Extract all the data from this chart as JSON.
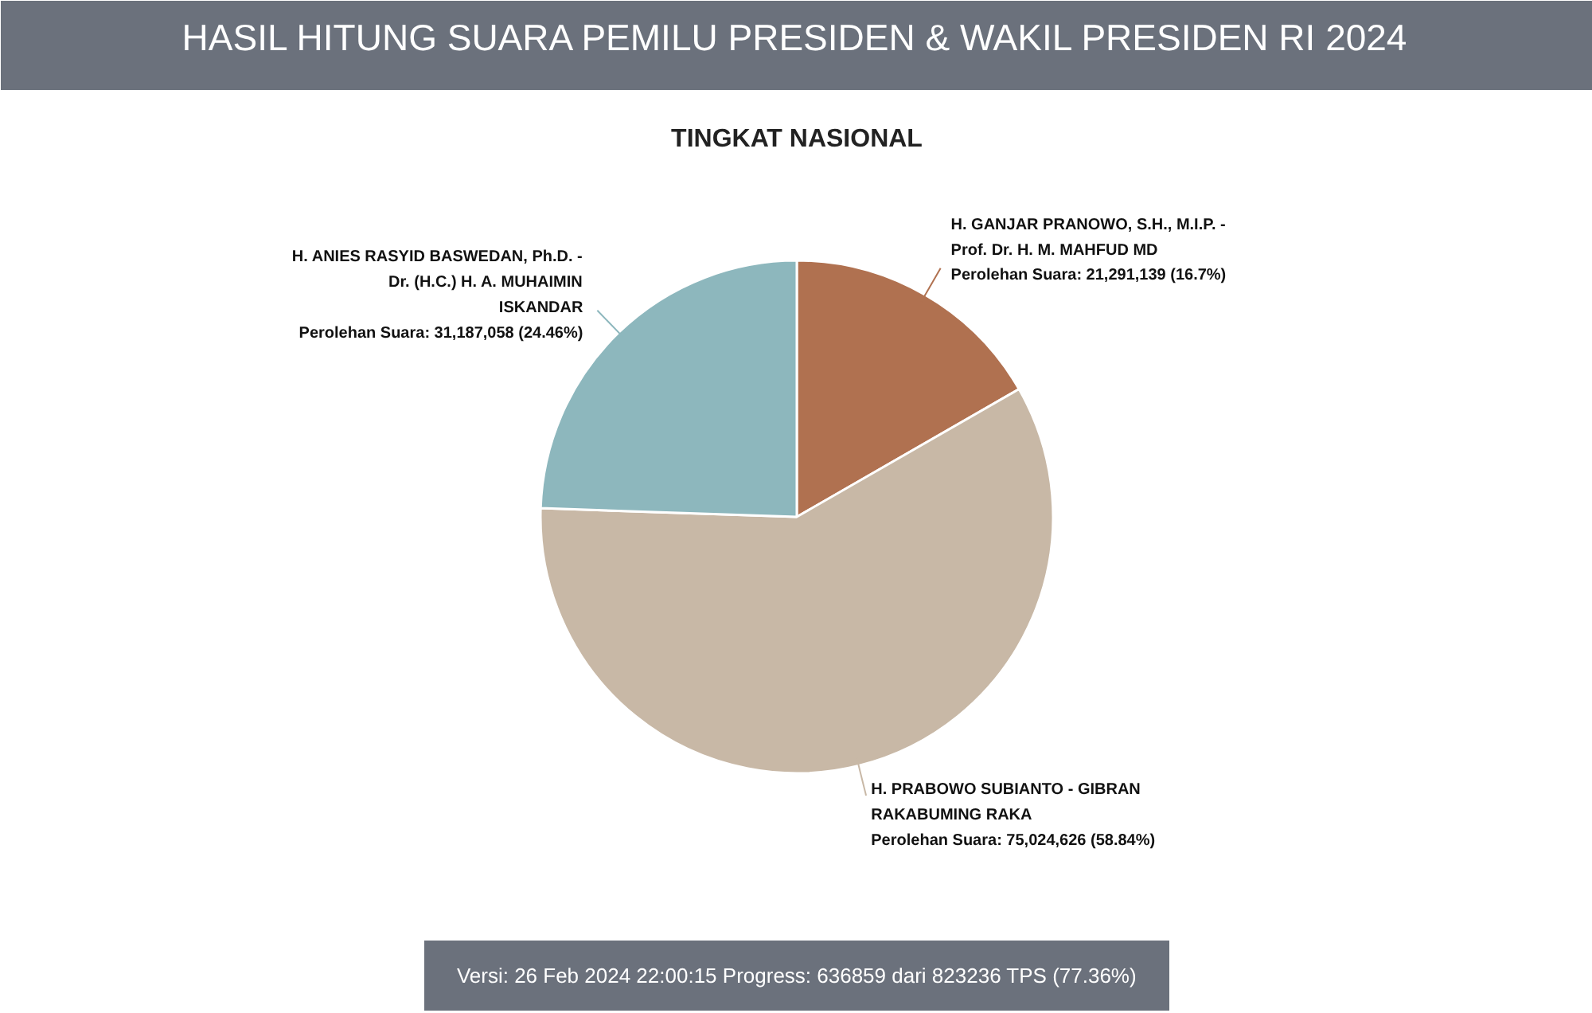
{
  "chart_data": {
    "type": "pie",
    "title": "HASIL HITUNG SUARA PEMILU PRESIDEN & WAKIL PRESIDEN RI 2024",
    "subtitle": "TINGKAT NASIONAL",
    "categories": [
      "H. GANJAR PRANOWO, S.H., M.I.P. - Prof. Dr. H. M. MAHFUD MD",
      "H. PRABOWO SUBIANTO - GIBRAN RAKABUMING RAKA",
      "H. ANIES RASYID BASWEDAN, Ph.D. - Dr. (H.C.) H. A. MUHAIMIN ISKANDAR"
    ],
    "values": [
      21291139,
      75024626,
      31187058
    ],
    "colors": [
      "#b07150",
      "#c8b8a6",
      "#8db7bd"
    ],
    "value_labels": [
      "Perolehan Suara: 21,291,139 (16.7%)",
      "Perolehan Suara: 75,024,626 (58.84%)",
      "Perolehan Suara: 31,187,058 (24.46%)"
    ],
    "annotations": [
      "Versi: 26 Feb 2024 22:00:15 Progress: 636859 dari 823236 TPS (77.36%)"
    ]
  }
}
